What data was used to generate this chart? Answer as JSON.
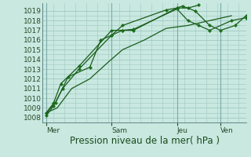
{
  "bg_color": "#c8e8e0",
  "grid_color": "#a0c8c0",
  "line_color": "#1a5c1a",
  "marker_color": "#1a6e1a",
  "ylim": [
    1007.5,
    1019.8
  ],
  "yticks": [
    1008,
    1009,
    1010,
    1011,
    1012,
    1013,
    1014,
    1015,
    1016,
    1017,
    1018,
    1019
  ],
  "xlabel": "Pression niveau de la mer( hPa )",
  "xlabel_fontsize": 8.5,
  "tick_fontsize": 6.5,
  "xtick_labels": [
    "Mer",
    "Sam",
    "Jeu",
    "Ven"
  ],
  "xtick_positions": [
    0,
    36,
    72,
    96
  ],
  "xlim": [
    -2,
    110
  ],
  "vline_positions": [
    0,
    36,
    72,
    96
  ],
  "series_x": [
    [
      0,
      4,
      8,
      18,
      36,
      42,
      48,
      72,
      78,
      84
    ],
    [
      0,
      4,
      9,
      18,
      36,
      42,
      48,
      72,
      78,
      84,
      90,
      102,
      110
    ],
    [
      0,
      5,
      12,
      24,
      30,
      36,
      42,
      66,
      72,
      75,
      82,
      90,
      96,
      104,
      110
    ],
    [
      0,
      6,
      14,
      24,
      34,
      42,
      54,
      66,
      78,
      90,
      102
    ]
  ],
  "series_y": [
    [
      1008.5,
      1009.5,
      1011.5,
      1013.3,
      1017.0,
      1017.0,
      1017.0,
      1019.3,
      1019.3,
      1019.6
    ],
    [
      1008.2,
      1009.2,
      1011.0,
      1013.0,
      1016.5,
      1017.0,
      1017.1,
      1019.2,
      1018.0,
      1017.5,
      1017.0,
      1018.0,
      1018.3
    ],
    [
      1008.5,
      1009.5,
      1012.2,
      1013.2,
      1016.0,
      1016.5,
      1017.5,
      1019.1,
      1019.3,
      1019.5,
      1019.0,
      1017.5,
      1017.0,
      1017.5,
      1018.5
    ],
    [
      1008.5,
      1009.0,
      1011.0,
      1012.0,
      1013.7,
      1015.0,
      1016.0,
      1017.2,
      1017.5,
      1018.0,
      1018.5
    ]
  ]
}
